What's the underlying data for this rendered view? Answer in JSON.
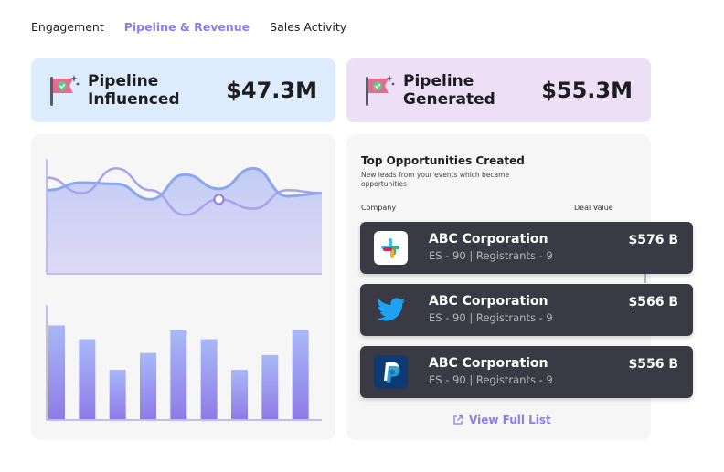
{
  "tabs": [
    {
      "label": "Engagement",
      "active": false
    },
    {
      "label": "Pipeline & Revenue",
      "active": true
    },
    {
      "label": "Sales Activity",
      "active": false
    }
  ],
  "kpis": {
    "influenced": {
      "line1": "Pipeline",
      "line2": "Influenced",
      "value": "$47.3M",
      "bg": "#dcecfd"
    },
    "generated": {
      "line1": "Pipeline",
      "line2": "Generated",
      "value": "$55.3M",
      "bg": "#ede0f6"
    }
  },
  "opportunities": {
    "title": "Top Opportunities Created",
    "subtitle": "New leads from your events which became opportunities",
    "col_company": "Company",
    "col_deal": "Deal Value",
    "rows": [
      {
        "logo": "slack-icon",
        "company": "ABC Corporation",
        "meta": "ES - 90 | Registrants - 9",
        "value": "$576 B"
      },
      {
        "logo": "twitter-icon",
        "company": "ABC Corporation",
        "meta": "ES - 90 | Registrants - 9",
        "value": "$566 B"
      },
      {
        "logo": "paypal-icon",
        "company": "ABC Corporation",
        "meta": "ES - 90 | Registrants - 9",
        "value": "$556 B"
      }
    ],
    "link": "View Full List"
  },
  "colors": {
    "accent": "#8b7cf0",
    "row_bg": "#3a3a44",
    "card_bg": "#f6f6f7"
  },
  "chart_data": [
    {
      "type": "line",
      "series": [
        {
          "values": [
            0.8,
            0.55,
            0.95,
            0.6,
            0.2,
            0.45,
            0.3,
            0.6,
            0.55
          ]
        },
        {
          "values": [
            0.6,
            0.72,
            0.7,
            0.45,
            0.85,
            0.62,
            0.95,
            0.5,
            0.55
          ]
        }
      ],
      "highlight_index": 5
    },
    {
      "type": "bar",
      "values": [
        0.95,
        0.81,
        0.5,
        0.67,
        0.9,
        0.81,
        0.5,
        0.65,
        0.9
      ]
    }
  ]
}
